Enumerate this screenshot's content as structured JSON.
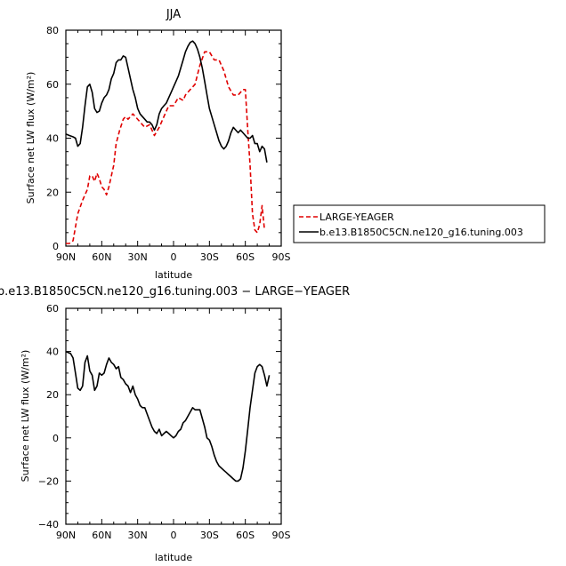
{
  "chart_data": [
    {
      "type": "line",
      "title": "JJA",
      "xlabel": "latitude",
      "ylabel": "Surface net LW flux (W/m²)",
      "xlim": [
        -90,
        90
      ],
      "ylim": [
        0,
        80
      ],
      "xticks": [
        -90,
        -60,
        -30,
        0,
        30,
        60,
        90
      ],
      "xtick_labels": [
        "90N",
        "60N",
        "30N",
        "0",
        "30S",
        "60S",
        "90S"
      ],
      "yticks": [
        0,
        20,
        40,
        60,
        80
      ],
      "ytick_labels": [
        "0",
        "20",
        "40",
        "60",
        "80"
      ],
      "legend_position": "right",
      "series": [
        {
          "name": "LARGE-YEAGER",
          "color": "#e00000",
          "dash": "dashed",
          "points": [
            [
              -90,
              1
            ],
            [
              -87,
              1
            ],
            [
              -84,
              2
            ],
            [
              -80,
              12
            ],
            [
              -76,
              17
            ],
            [
              -72,
              21
            ],
            [
              -70,
              26
            ],
            [
              -68,
              26
            ],
            [
              -66,
              24
            ],
            [
              -64,
              27
            ],
            [
              -62,
              25
            ],
            [
              -60,
              22
            ],
            [
              -58,
              21
            ],
            [
              -56,
              19
            ],
            [
              -54,
              22
            ],
            [
              -50,
              30
            ],
            [
              -48,
              38
            ],
            [
              -45,
              43
            ],
            [
              -42,
              47
            ],
            [
              -40,
              48
            ],
            [
              -38,
              47
            ],
            [
              -36,
              48
            ],
            [
              -34,
              49
            ],
            [
              -32,
              48
            ],
            [
              -28,
              46
            ],
            [
              -26,
              45
            ],
            [
              -24,
              44
            ],
            [
              -20,
              45
            ],
            [
              -16,
              41
            ],
            [
              -12,
              44
            ],
            [
              -8,
              48
            ],
            [
              -4,
              52
            ],
            [
              0,
              52
            ],
            [
              4,
              55
            ],
            [
              8,
              54
            ],
            [
              10,
              56
            ],
            [
              14,
              58
            ],
            [
              18,
              60
            ],
            [
              22,
              67
            ],
            [
              26,
              72
            ],
            [
              30,
              72
            ],
            [
              34,
              69
            ],
            [
              38,
              69
            ],
            [
              42,
              65
            ],
            [
              46,
              59
            ],
            [
              50,
              56
            ],
            [
              54,
              56
            ],
            [
              58,
              58
            ],
            [
              60,
              58
            ],
            [
              62,
              43
            ],
            [
              64,
              30
            ],
            [
              66,
              12
            ],
            [
              68,
              6
            ],
            [
              70,
              5
            ],
            [
              72,
              8
            ],
            [
              74,
              15
            ],
            [
              76,
              6
            ]
          ]
        },
        {
          "name": "b.e13.B1850C5CN.ne120_g16.tuning.003",
          "color": "#000000",
          "dash": "solid",
          "points": [
            [
              -90,
              41.5
            ],
            [
              -87,
              41
            ],
            [
              -84,
              40.5
            ],
            [
              -82,
              40
            ],
            [
              -80,
              37
            ],
            [
              -78,
              38
            ],
            [
              -76,
              44
            ],
            [
              -74,
              52
            ],
            [
              -72,
              59
            ],
            [
              -70,
              60
            ],
            [
              -68,
              57
            ],
            [
              -66,
              51
            ],
            [
              -64,
              49.5
            ],
            [
              -62,
              50
            ],
            [
              -60,
              53
            ],
            [
              -58,
              55
            ],
            [
              -56,
              56
            ],
            [
              -54,
              58
            ],
            [
              -52,
              62
            ],
            [
              -50,
              64
            ],
            [
              -48,
              68
            ],
            [
              -46,
              69
            ],
            [
              -44,
              69
            ],
            [
              -42,
              70.5
            ],
            [
              -40,
              70
            ],
            [
              -38,
              66
            ],
            [
              -36,
              62
            ],
            [
              -34,
              58
            ],
            [
              -32,
              55
            ],
            [
              -30,
              51
            ],
            [
              -28,
              49
            ],
            [
              -26,
              48
            ],
            [
              -24,
              47
            ],
            [
              -22,
              46
            ],
            [
              -20,
              46
            ],
            [
              -18,
              45
            ],
            [
              -16,
              43
            ],
            [
              -14,
              45
            ],
            [
              -12,
              49
            ],
            [
              -10,
              51
            ],
            [
              -8,
              52
            ],
            [
              -6,
              53
            ],
            [
              -4,
              55
            ],
            [
              -2,
              57
            ],
            [
              0,
              59
            ],
            [
              2,
              61
            ],
            [
              4,
              63
            ],
            [
              6,
              66
            ],
            [
              8,
              69
            ],
            [
              10,
              72
            ],
            [
              12,
              74
            ],
            [
              14,
              75.5
            ],
            [
              16,
              76
            ],
            [
              18,
              75
            ],
            [
              20,
              73
            ],
            [
              22,
              70
            ],
            [
              24,
              66
            ],
            [
              26,
              61
            ],
            [
              28,
              56
            ],
            [
              30,
              51
            ],
            [
              32,
              48
            ],
            [
              34,
              45
            ],
            [
              36,
              42
            ],
            [
              38,
              39
            ],
            [
              40,
              37
            ],
            [
              42,
              36
            ],
            [
              44,
              37
            ],
            [
              46,
              39
            ],
            [
              48,
              42
            ],
            [
              50,
              44
            ],
            [
              52,
              43
            ],
            [
              54,
              42
            ],
            [
              56,
              43
            ],
            [
              58,
              42
            ],
            [
              60,
              41
            ],
            [
              62,
              40
            ],
            [
              64,
              40
            ],
            [
              66,
              41
            ],
            [
              68,
              38
            ],
            [
              70,
              38
            ],
            [
              72,
              35
            ],
            [
              74,
              37
            ],
            [
              76,
              36
            ],
            [
              78,
              31
            ]
          ]
        }
      ]
    },
    {
      "type": "line",
      "title": "b.e13.B1850C5CN.ne120_g16.tuning.003 − LARGE−YEAGER",
      "xlabel": "latitude",
      "ylabel": "Surface net LW flux (W/m²)",
      "xlim": [
        -90,
        90
      ],
      "ylim": [
        -40,
        60
      ],
      "xticks": [
        -90,
        -60,
        -30,
        0,
        30,
        60,
        90
      ],
      "xtick_labels": [
        "90N",
        "60N",
        "30N",
        "0",
        "30S",
        "60S",
        "90S"
      ],
      "yticks": [
        -40,
        -20,
        0,
        20,
        40,
        60
      ],
      "ytick_labels": [
        "−40",
        "−20",
        "0",
        "20",
        "40",
        "60"
      ],
      "series": [
        {
          "color": "#000000",
          "dash": "solid",
          "points": [
            [
              -90,
              40
            ],
            [
              -86,
              39
            ],
            [
              -84,
              37
            ],
            [
              -82,
              30
            ],
            [
              -80,
              23
            ],
            [
              -78,
              22
            ],
            [
              -76,
              24
            ],
            [
              -74,
              35
            ],
            [
              -72,
              38
            ],
            [
              -70,
              31
            ],
            [
              -68,
              29
            ],
            [
              -66,
              22
            ],
            [
              -64,
              24
            ],
            [
              -62,
              30
            ],
            [
              -60,
              29
            ],
            [
              -58,
              30
            ],
            [
              -56,
              34
            ],
            [
              -54,
              37
            ],
            [
              -52,
              35
            ],
            [
              -50,
              34
            ],
            [
              -48,
              32
            ],
            [
              -46,
              33
            ],
            [
              -44,
              28
            ],
            [
              -42,
              27
            ],
            [
              -40,
              25
            ],
            [
              -38,
              24
            ],
            [
              -36,
              21
            ],
            [
              -34,
              24
            ],
            [
              -32,
              20
            ],
            [
              -30,
              18
            ],
            [
              -28,
              15
            ],
            [
              -26,
              14
            ],
            [
              -24,
              14
            ],
            [
              -22,
              11
            ],
            [
              -20,
              8
            ],
            [
              -18,
              5
            ],
            [
              -16,
              3
            ],
            [
              -14,
              2
            ],
            [
              -12,
              4
            ],
            [
              -10,
              1
            ],
            [
              -8,
              2
            ],
            [
              -6,
              3
            ],
            [
              -4,
              2
            ],
            [
              -2,
              1
            ],
            [
              0,
              0
            ],
            [
              2,
              1
            ],
            [
              4,
              3
            ],
            [
              6,
              4
            ],
            [
              8,
              7
            ],
            [
              10,
              8
            ],
            [
              12,
              10
            ],
            [
              14,
              12
            ],
            [
              16,
              14
            ],
            [
              18,
              13
            ],
            [
              20,
              13
            ],
            [
              22,
              13
            ],
            [
              24,
              9
            ],
            [
              26,
              5
            ],
            [
              28,
              0
            ],
            [
              30,
              -1
            ],
            [
              32,
              -4
            ],
            [
              34,
              -8
            ],
            [
              36,
              -11
            ],
            [
              38,
              -13
            ],
            [
              40,
              -14
            ],
            [
              42,
              -15
            ],
            [
              44,
              -16
            ],
            [
              46,
              -17
            ],
            [
              48,
              -18
            ],
            [
              50,
              -19
            ],
            [
              52,
              -20
            ],
            [
              54,
              -20
            ],
            [
              56,
              -19
            ],
            [
              58,
              -14
            ],
            [
              60,
              -6
            ],
            [
              62,
              4
            ],
            [
              64,
              14
            ],
            [
              66,
              22
            ],
            [
              68,
              30
            ],
            [
              70,
              33
            ],
            [
              72,
              34
            ],
            [
              74,
              33
            ],
            [
              76,
              29
            ],
            [
              78,
              24
            ],
            [
              80,
              29
            ]
          ]
        }
      ]
    }
  ]
}
